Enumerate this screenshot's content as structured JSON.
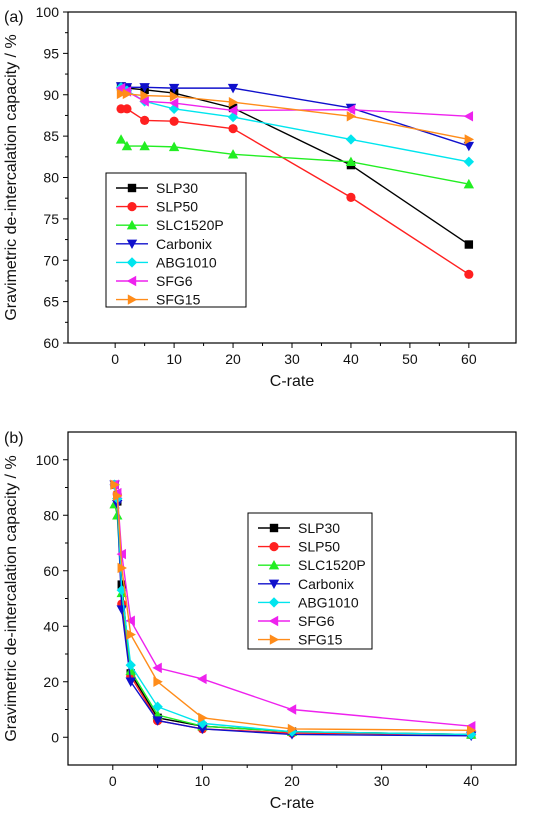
{
  "watermark": "",
  "chart_data": [
    {
      "type": "line",
      "panel_label": "(a)",
      "xlabel": "C-rate",
      "ylabel": "Gravimetric de-intercalation capacity / %",
      "xlim": [
        -8,
        68
      ],
      "ylim": [
        60,
        100
      ],
      "xticks": [
        0,
        10,
        20,
        30,
        40,
        50,
        60
      ],
      "yticks": [
        60,
        65,
        70,
        75,
        80,
        85,
        90,
        95,
        100
      ],
      "legend_position": "lower-left",
      "series": [
        {
          "name": "SLP30",
          "color": "#000000",
          "marker": "square",
          "x": [
            1,
            2,
            5,
            10,
            20,
            40,
            60
          ],
          "y": [
            91.0,
            90.8,
            90.6,
            90.2,
            88.4,
            81.5,
            71.9
          ]
        },
        {
          "name": "SLP50",
          "color": "#ff2020",
          "marker": "circle",
          "x": [
            1,
            2,
            5,
            10,
            20,
            40,
            60
          ],
          "y": [
            88.3,
            88.3,
            86.9,
            86.8,
            85.9,
            77.6,
            68.3
          ]
        },
        {
          "name": "SLC1520P",
          "color": "#22ee22",
          "marker": "triangle-up",
          "x": [
            1,
            2,
            5,
            10,
            20,
            40,
            60
          ],
          "y": [
            84.6,
            83.8,
            83.8,
            83.7,
            82.8,
            81.9,
            79.2
          ]
        },
        {
          "name": "Carbonix",
          "color": "#1010cc",
          "marker": "triangle-down",
          "x": [
            1,
            2,
            5,
            10,
            20,
            40,
            60
          ],
          "y": [
            91.0,
            90.9,
            90.9,
            90.8,
            90.8,
            88.4,
            83.8
          ]
        },
        {
          "name": "ABG1010",
          "color": "#00e5ee",
          "marker": "diamond",
          "x": [
            1,
            2,
            5,
            10,
            20,
            40,
            60
          ],
          "y": [
            90.9,
            90.5,
            89.2,
            88.3,
            87.3,
            84.6,
            81.9
          ]
        },
        {
          "name": "SFG6",
          "color": "#ee22ee",
          "marker": "triangle-left",
          "x": [
            1,
            2,
            5,
            10,
            20,
            40,
            60
          ],
          "y": [
            90.8,
            90.4,
            89.2,
            89.0,
            88.1,
            88.2,
            87.4
          ]
        },
        {
          "name": "SFG15",
          "color": "#ff8c1a",
          "marker": "triangle-right",
          "x": [
            1,
            2,
            5,
            10,
            20,
            40,
            60
          ],
          "y": [
            90.1,
            90.1,
            89.9,
            89.8,
            89.1,
            87.4,
            84.6
          ]
        }
      ]
    },
    {
      "type": "line",
      "panel_label": "(b)",
      "xlabel": "C-rate",
      "ylabel": "Gravimetric de-intercalation capacity / %",
      "xlim": [
        -5,
        45
      ],
      "ylim": [
        -10,
        110
      ],
      "xticks": [
        0,
        10,
        20,
        30,
        40
      ],
      "yticks": [
        0,
        20,
        40,
        60,
        80,
        100
      ],
      "legend_position": "upper-right",
      "series": [
        {
          "name": "SLP30",
          "color": "#000000",
          "marker": "square",
          "x": [
            0.2,
            0.5,
            1,
            2,
            5,
            10,
            20,
            40
          ],
          "y": [
            91,
            85,
            55,
            23,
            7,
            4,
            2,
            1
          ]
        },
        {
          "name": "SLP50",
          "color": "#ff2020",
          "marker": "circle",
          "x": [
            0.2,
            0.5,
            1,
            2,
            5,
            10,
            20,
            40
          ],
          "y": [
            91,
            87.5,
            48,
            22,
            6,
            3,
            1.5,
            1
          ]
        },
        {
          "name": "SLC1520P",
          "color": "#22ee22",
          "marker": "triangle-up",
          "x": [
            0.2,
            0.5,
            1,
            2,
            5,
            10,
            20,
            40
          ],
          "y": [
            84,
            80,
            52,
            24,
            8,
            4,
            2,
            1
          ]
        },
        {
          "name": "Carbonix",
          "color": "#1010cc",
          "marker": "triangle-down",
          "x": [
            0.2,
            0.5,
            1,
            2,
            5,
            10,
            20,
            40
          ],
          "y": [
            91,
            84,
            46,
            20,
            6,
            3,
            1,
            0.5
          ]
        },
        {
          "name": "ABG1010",
          "color": "#00e5ee",
          "marker": "diamond",
          "x": [
            0.2,
            0.5,
            1,
            2,
            5,
            10,
            20,
            40
          ],
          "y": [
            91,
            86,
            53,
            26,
            11,
            5,
            2,
            1
          ]
        },
        {
          "name": "SFG6",
          "color": "#ee22ee",
          "marker": "triangle-left",
          "x": [
            0.2,
            0.5,
            1,
            2,
            5,
            10,
            20,
            40
          ],
          "y": [
            91,
            88,
            66,
            42,
            25,
            21,
            10,
            4
          ]
        },
        {
          "name": "SFG15",
          "color": "#ff8c1a",
          "marker": "triangle-right",
          "x": [
            0.2,
            0.5,
            1,
            2,
            5,
            10,
            20,
            40
          ],
          "y": [
            91,
            87,
            61,
            37,
            20,
            7,
            3,
            2.5
          ]
        }
      ]
    }
  ]
}
